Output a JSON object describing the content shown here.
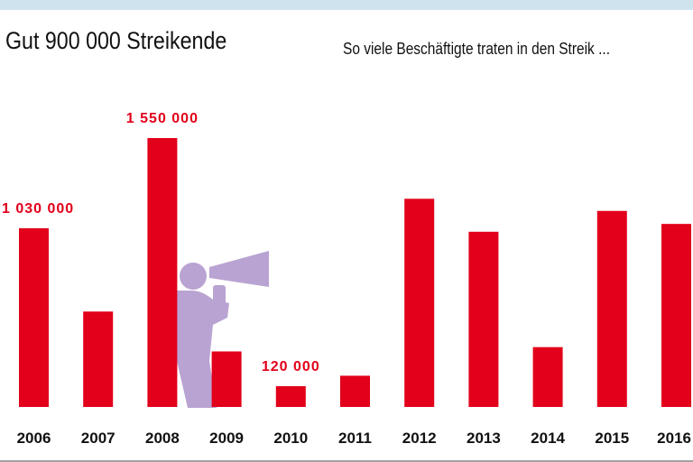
{
  "header": {
    "title": "Gut 900 000 Streikende",
    "subtitle": "So viele Beschäftigte traten in den Streik ..."
  },
  "colors": {
    "bar": "#e2001a",
    "figure": "#b9a3d2",
    "accent_band": "#cfe3ef"
  },
  "illustration": {
    "icon": "megaphone-person-icon"
  },
  "chart_data": {
    "type": "bar",
    "categories": [
      "2006",
      "2007",
      "2008",
      "2009",
      "2010",
      "2011",
      "2012",
      "2013",
      "2014",
      "2015",
      "2016"
    ],
    "values": [
      1030000,
      550000,
      1550000,
      320000,
      120000,
      180000,
      1200000,
      1010000,
      345000,
      1130000,
      1055000
    ],
    "data_labels": [
      "1 030 000",
      "",
      "1 550 000",
      "",
      "120 000",
      "",
      "",
      "",
      "",
      "",
      ""
    ],
    "ylim": [
      0,
      1550000
    ],
    "grid": false,
    "legend": "none"
  }
}
